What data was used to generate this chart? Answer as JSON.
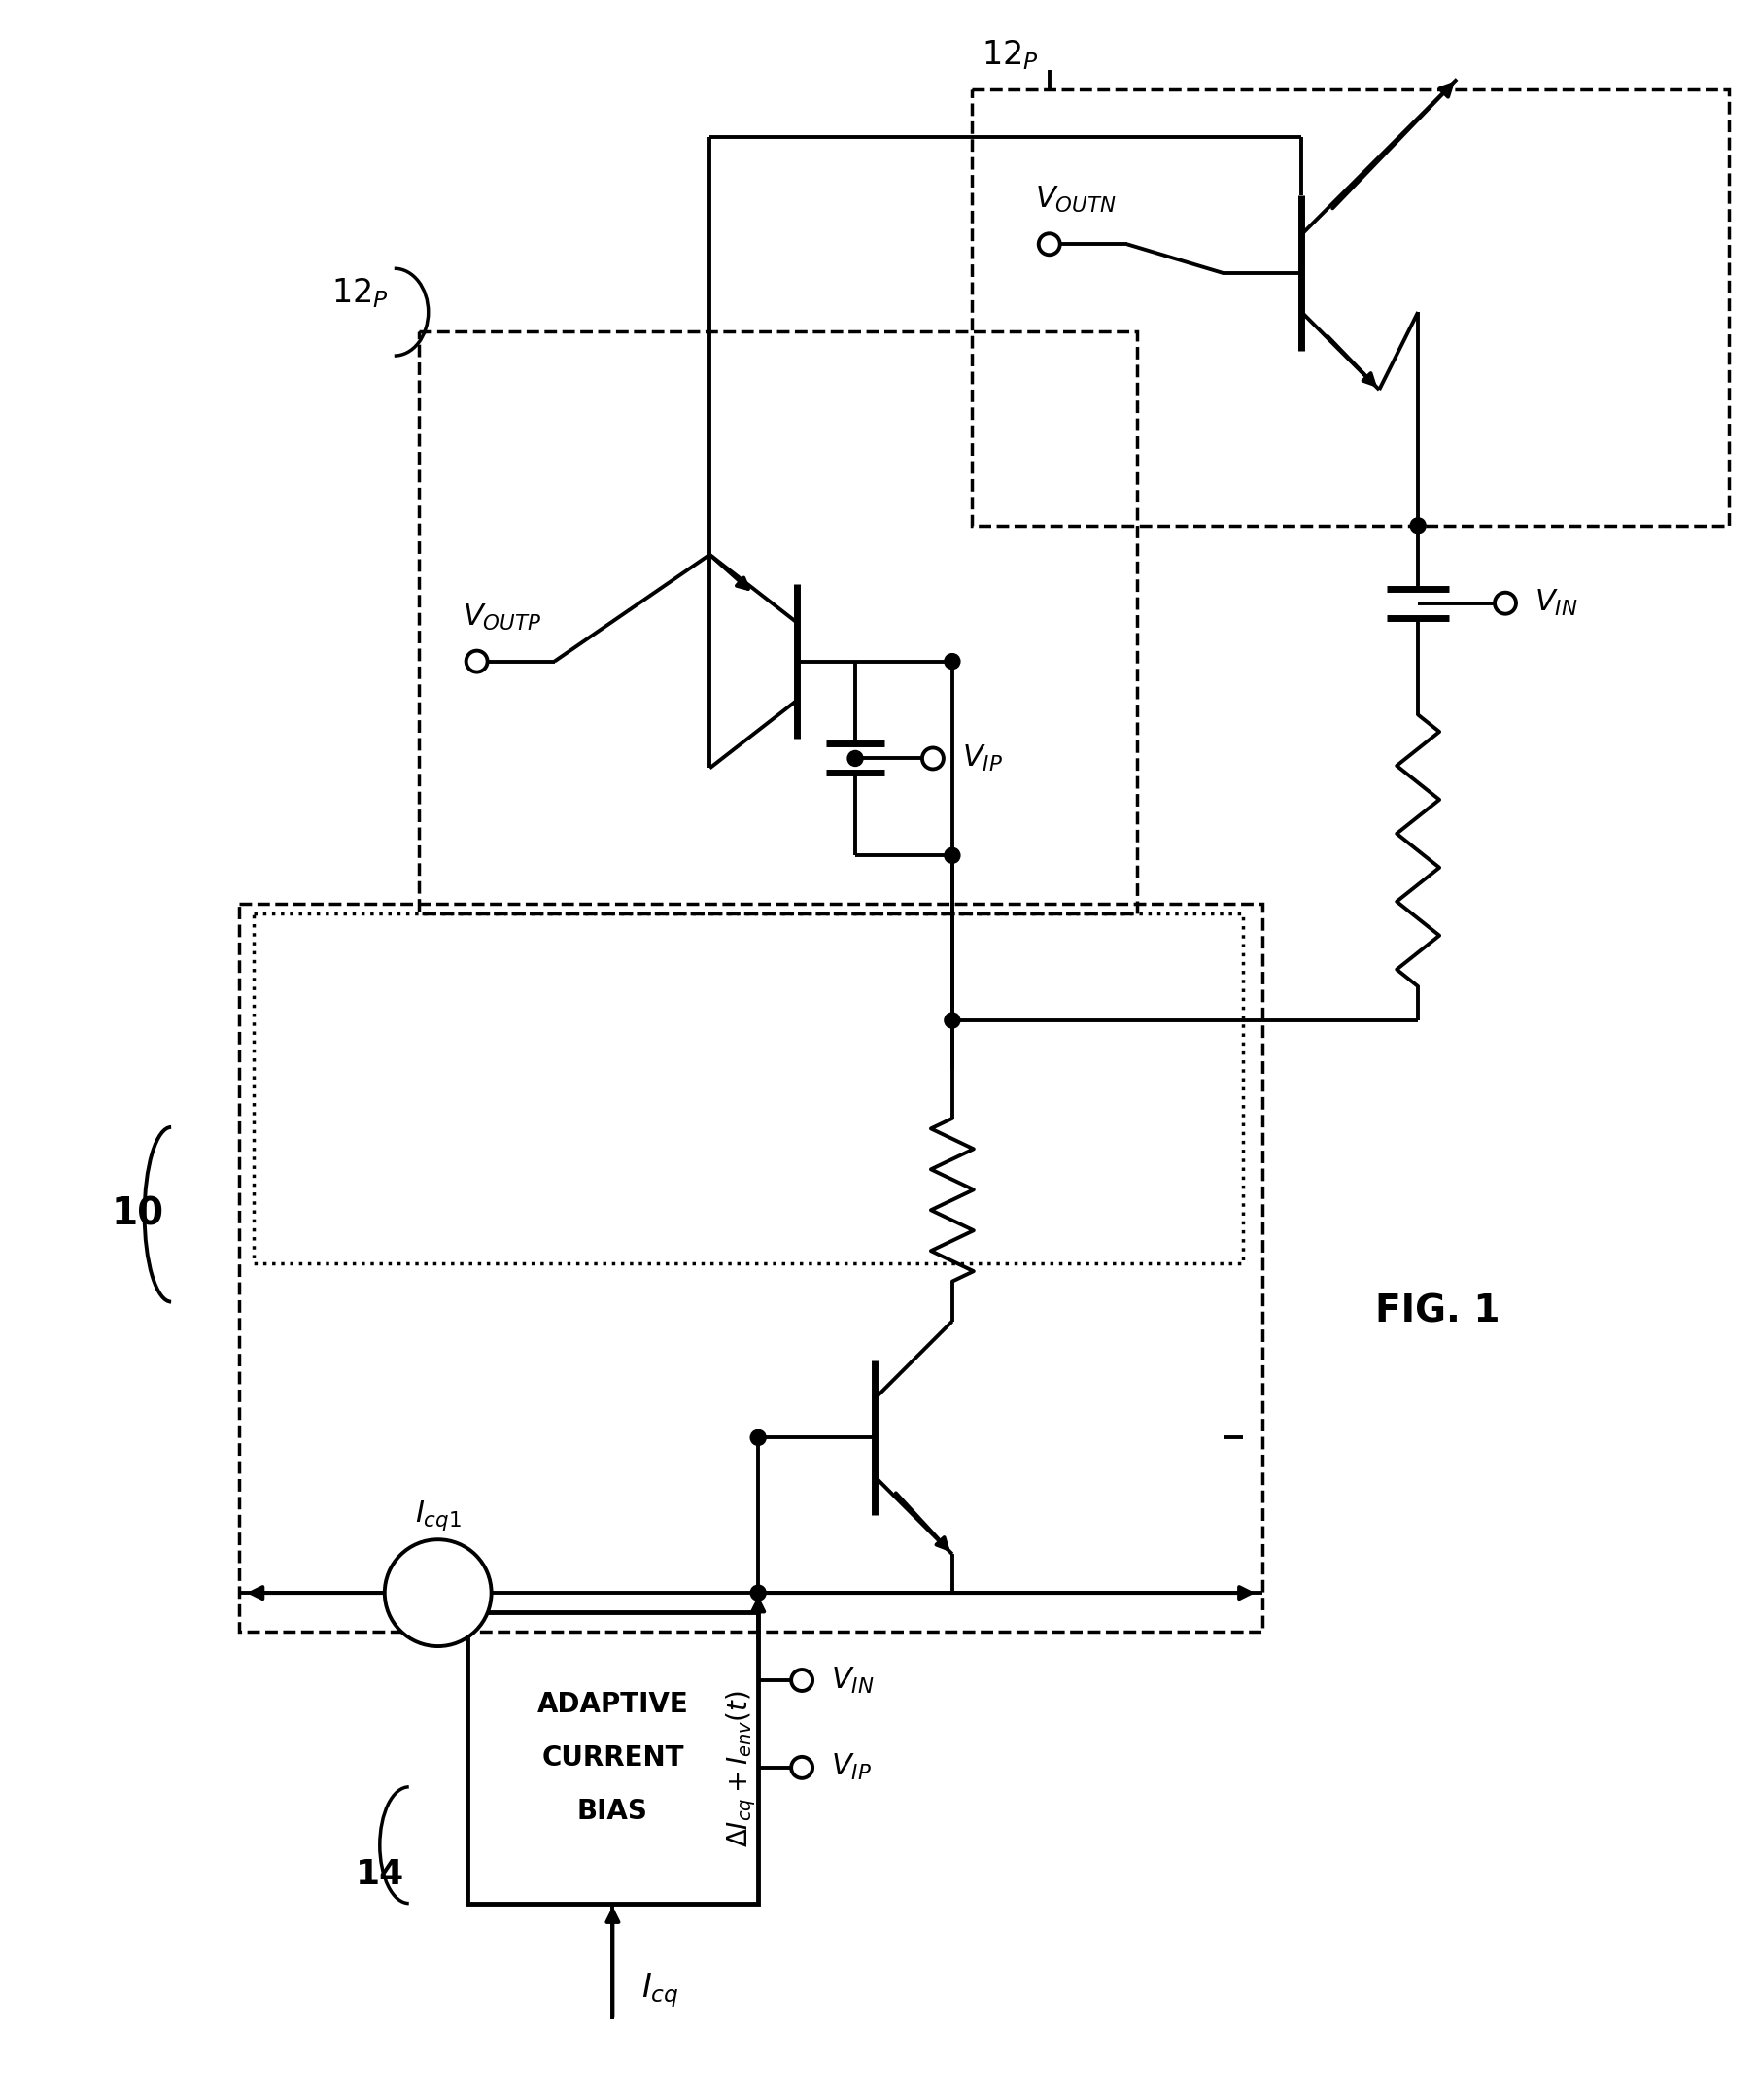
{
  "fig_width": 18.1,
  "fig_height": 21.61,
  "bg_color": "#ffffff",
  "lw": 2.8,
  "tlw": 5.0,
  "title": "FIG. 1",
  "label_14": "14",
  "label_10": "10",
  "acb_lines": [
    "ADAPTIVE",
    "CURRENT",
    "BIAS"
  ],
  "label_icq": "$I_{cq}$",
  "label_icq1": "$I_{cq1}$",
  "label_delta": "$\\Delta I_{cq} + I_{env}(t)$",
  "label_voutp": "$V_{OUTP}$",
  "label_voutn": "$V_{OUTN}$",
  "label_vin": "$V_{IN}$",
  "label_vip": "$V_{IP}$",
  "label_12p": "$12_P$"
}
